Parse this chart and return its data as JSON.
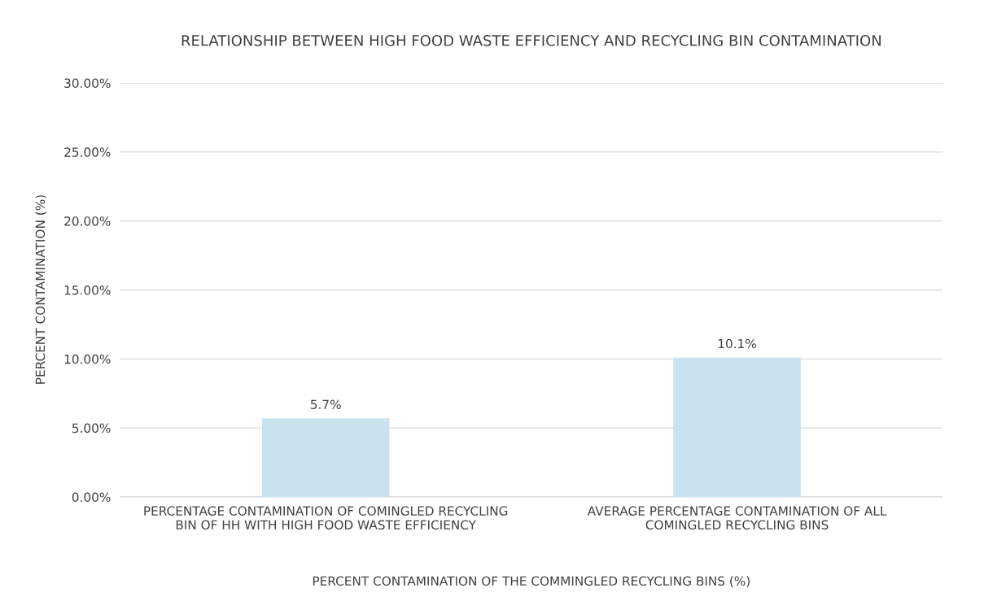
{
  "chart_data": {
    "type": "bar",
    "title": "RELATIONSHIP BETWEEN HIGH FOOD WASTE EFFICIENCY AND RECYCLING BIN CONTAMINATION",
    "xlabel": "PERCENT CONTAMINATION OF THE COMMINGLED RECYCLING BINS (%)",
    "ylabel": "PERCENT CONTAMINATION (%)",
    "categories": [
      "PERCENTAGE CONTAMINATION OF COMINGLED RECYCLING\nBIN OF HH WITH HIGH FOOD WASTE EFFICIENCY",
      "AVERAGE PERCENTAGE CONTAMINATION OF ALL\nCOMINGLED RECYCLING BINS"
    ],
    "values": [
      5.7,
      10.1
    ],
    "value_labels": [
      "5.7%",
      "10.1%"
    ],
    "color": "#c9e2f0",
    "ylim": [
      0,
      30
    ],
    "yticks": [
      {
        "value": 0,
        "label": "0.00%"
      },
      {
        "value": 5,
        "label": "5.00%"
      },
      {
        "value": 10,
        "label": "10.00%"
      },
      {
        "value": 15,
        "label": "15.00%"
      },
      {
        "value": 20,
        "label": "20.00%"
      },
      {
        "value": 25,
        "label": "25.00%"
      },
      {
        "value": 30,
        "label": "30.00%"
      }
    ],
    "grid": "y"
  }
}
